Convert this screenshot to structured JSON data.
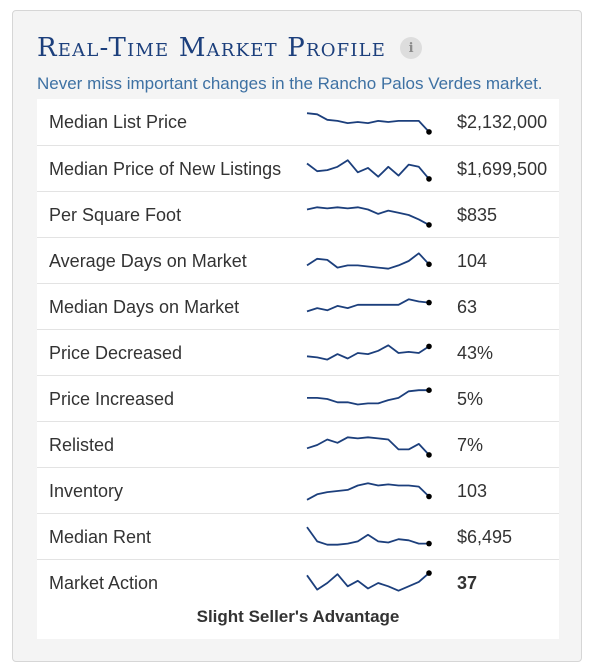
{
  "widget": {
    "title": "Real-Time Market Profile",
    "info_icon": "info-icon",
    "subtitle": "Never miss important changes in the Rancho Palos Verdes market.",
    "footer": "Slight Seller's Advantage"
  },
  "colors": {
    "title": "#1c3f7c",
    "subtitle": "#3e71a3",
    "sparkline": "#1c3f7c",
    "endpoint": "#000000"
  },
  "rows": [
    {
      "label": "Median List Price",
      "value": "$2,132,000",
      "bold": false,
      "trend": [
        0.9,
        0.85,
        0.6,
        0.55,
        0.45,
        0.5,
        0.45,
        0.55,
        0.5,
        0.55,
        0.55,
        0.55,
        0.05
      ]
    },
    {
      "label": "Median Price of New Listings",
      "value": "$1,699,500",
      "bold": false,
      "trend": [
        0.75,
        0.4,
        0.45,
        0.6,
        0.9,
        0.35,
        0.55,
        0.15,
        0.6,
        0.2,
        0.7,
        0.6,
        0.05
      ]
    },
    {
      "label": "Per Square Foot",
      "value": "$835",
      "bold": false,
      "trend": [
        0.75,
        0.85,
        0.8,
        0.85,
        0.8,
        0.85,
        0.75,
        0.55,
        0.7,
        0.6,
        0.5,
        0.3,
        0.05
      ]
    },
    {
      "label": "Average Days on Market",
      "value": "104",
      "bold": false,
      "trend": [
        0.3,
        0.6,
        0.55,
        0.2,
        0.3,
        0.3,
        0.25,
        0.2,
        0.15,
        0.3,
        0.5,
        0.85,
        0.35
      ]
    },
    {
      "label": "Median Days on Market",
      "value": "63",
      "bold": false,
      "trend": [
        0.3,
        0.45,
        0.35,
        0.55,
        0.45,
        0.6,
        0.6,
        0.6,
        0.6,
        0.6,
        0.85,
        0.75,
        0.7
      ]
    },
    {
      "label": "Price Decreased",
      "value": "43%",
      "bold": false,
      "trend": [
        0.35,
        0.3,
        0.2,
        0.45,
        0.25,
        0.5,
        0.45,
        0.6,
        0.85,
        0.5,
        0.55,
        0.5,
        0.8
      ]
    },
    {
      "label": "Price Increased",
      "value": "5%",
      "bold": false,
      "trend": [
        0.55,
        0.55,
        0.5,
        0.35,
        0.35,
        0.25,
        0.3,
        0.3,
        0.45,
        0.55,
        0.85,
        0.9,
        0.9
      ]
    },
    {
      "label": "Relisted",
      "value": "7%",
      "bold": false,
      "trend": [
        0.35,
        0.5,
        0.75,
        0.6,
        0.85,
        0.8,
        0.85,
        0.8,
        0.75,
        0.3,
        0.3,
        0.55,
        0.05
      ]
    },
    {
      "label": "Inventory",
      "value": "103",
      "bold": false,
      "trend": [
        0.1,
        0.35,
        0.45,
        0.5,
        0.55,
        0.75,
        0.85,
        0.75,
        0.8,
        0.75,
        0.75,
        0.7,
        0.25
      ]
    },
    {
      "label": "Median Rent",
      "value": "$6,495",
      "bold": false,
      "trend": [
        0.95,
        0.3,
        0.15,
        0.15,
        0.2,
        0.3,
        0.6,
        0.3,
        0.25,
        0.4,
        0.35,
        0.2,
        0.2
      ]
    },
    {
      "label": "Market Action",
      "value": "37",
      "bold": true,
      "trend": [
        0.85,
        0.2,
        0.5,
        0.9,
        0.35,
        0.6,
        0.25,
        0.5,
        0.35,
        0.15,
        0.35,
        0.55,
        0.95
      ]
    }
  ]
}
